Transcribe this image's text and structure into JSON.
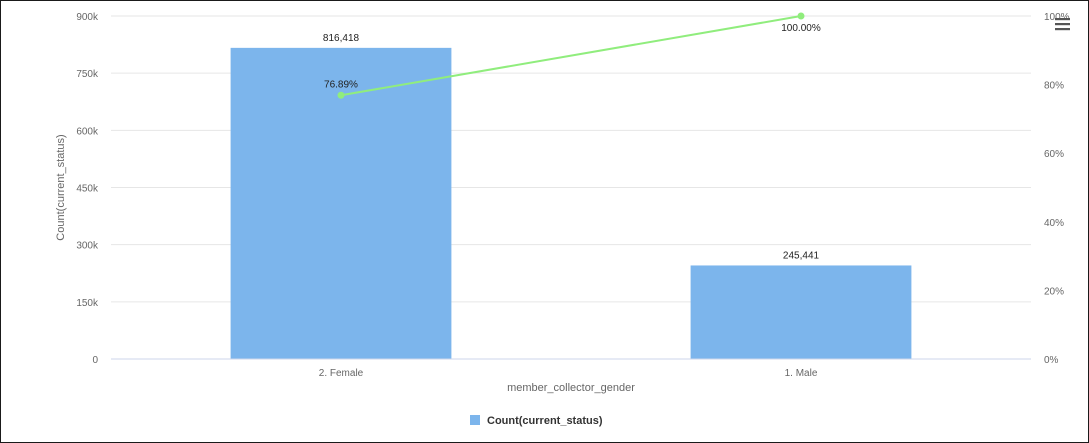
{
  "chart_data": {
    "type": "bar",
    "categories": [
      "2. Female",
      "1. Male"
    ],
    "series": [
      {
        "name": "Count(current_status)",
        "values": [
          816418,
          245441
        ],
        "color": "#7cb5ec",
        "labels": [
          "816,418",
          "245,441"
        ]
      }
    ],
    "cumulative_percent": {
      "values": [
        76.89,
        100.0
      ],
      "labels": [
        "76.89%",
        "100.00%"
      ],
      "color": "#90ed7d"
    },
    "xlabel": "member_collector_gender",
    "ylabel": "Count(current_status)",
    "ylim": [
      0,
      900000
    ],
    "y_ticks": [
      "0",
      "150k",
      "300k",
      "450k",
      "600k",
      "750k",
      "900k"
    ],
    "y2lim": [
      0,
      100
    ],
    "y2_ticks": [
      "0%",
      "20%",
      "40%",
      "60%",
      "80%",
      "100%"
    ],
    "grid": true,
    "legend": "bottom-center"
  },
  "menu_icon": "hamburger-menu-icon"
}
